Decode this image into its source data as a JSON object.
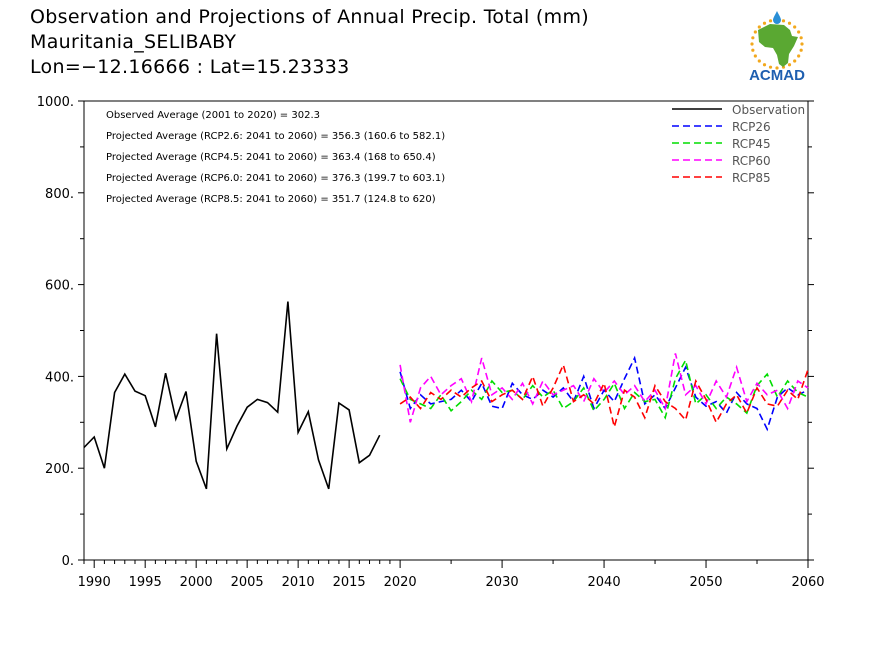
{
  "header": {
    "title_line1": "Observation and Projections of Annual Precip. Total (mm)",
    "title_line2": "Mauritania_SELIBABY",
    "title_line3": "Lon=−12.16666 : Lat=15.23333"
  },
  "logo": {
    "text": "ACMAD",
    "colors": {
      "africa": "#5aa832",
      "sun": "#f2a81d",
      "drop": "#2a8fd6",
      "text": "#1f5fb0"
    }
  },
  "chart_data": {
    "type": "line",
    "xlim": [
      1989,
      2060
    ],
    "ylim": [
      0,
      1000
    ],
    "x_ticks": [
      1990,
      1995,
      2000,
      2005,
      2010,
      2015,
      2020,
      2030,
      2040,
      2050,
      2060
    ],
    "y_ticks": [
      0,
      200,
      400,
      600,
      800,
      1000
    ],
    "y_tick_labels": [
      "0.",
      "200.",
      "400.",
      "600.",
      "800.",
      "1000."
    ],
    "annotations": [
      "Observed Average (2001 to 2020) = 302.3",
      "Projected Average (RCP2.6: 2041 to 2060) = 356.3 (160.6 to 582.1)",
      "Projected Average (RCP4.5: 2041 to 2060) = 363.4 (168 to 650.4)",
      "Projected Average (RCP6.0: 2041 to 2060) = 376.3 (199.7 to 603.1)",
      "Projected Average (RCP8.5: 2041 to 2060) = 351.7 (124.8 to 620)"
    ],
    "legend_position": "top-right",
    "series": [
      {
        "name": "Observation",
        "color": "#000000",
        "dash": "solid",
        "x": [
          1989,
          1990,
          1991,
          1992,
          1993,
          1994,
          1995,
          1996,
          1997,
          1998,
          1999,
          2000,
          2001,
          2002,
          2003,
          2004,
          2005,
          2006,
          2007,
          2008,
          2009,
          2010,
          2011,
          2012,
          2013,
          2014,
          2015,
          2016,
          2017,
          2018,
          2019,
          2020
        ],
        "values": [
          245,
          268,
          200,
          365,
          405,
          368,
          358,
          290,
          407,
          307,
          367,
          215,
          155,
          493,
          242,
          292,
          333,
          350,
          343,
          322,
          563,
          278,
          323,
          218,
          155,
          342,
          327,
          212,
          228,
          272,
          null,
          null
        ]
      },
      {
        "name": "RCP26",
        "color": "#0000ff",
        "dash": "dashed",
        "x": [
          2020,
          2021,
          2022,
          2023,
          2024,
          2025,
          2026,
          2027,
          2028,
          2029,
          2030,
          2031,
          2032,
          2033,
          2034,
          2035,
          2036,
          2037,
          2038,
          2039,
          2040,
          2041,
          2042,
          2043,
          2044,
          2045,
          2046,
          2047,
          2048,
          2049,
          2050,
          2051,
          2052,
          2053,
          2054,
          2055,
          2056,
          2057,
          2058,
          2059,
          2060
        ],
        "values": [
          410,
          330,
          360,
          340,
          345,
          350,
          370,
          345,
          385,
          335,
          330,
          385,
          360,
          350,
          370,
          355,
          375,
          345,
          400,
          330,
          370,
          345,
          395,
          440,
          340,
          360,
          330,
          375,
          420,
          355,
          335,
          345,
          320,
          365,
          340,
          330,
          285,
          355,
          375,
          360,
          370
        ]
      },
      {
        "name": "RCP45",
        "color": "#00dd00",
        "dash": "dashed",
        "x": [
          2020,
          2021,
          2022,
          2023,
          2024,
          2025,
          2026,
          2027,
          2028,
          2029,
          2030,
          2031,
          2032,
          2033,
          2034,
          2035,
          2036,
          2037,
          2038,
          2039,
          2040,
          2041,
          2042,
          2043,
          2044,
          2045,
          2046,
          2047,
          2048,
          2049,
          2050,
          2051,
          2052,
          2053,
          2054,
          2055,
          2056,
          2057,
          2058,
          2059,
          2060
        ],
        "values": [
          395,
          350,
          340,
          330,
          360,
          325,
          345,
          370,
          350,
          390,
          365,
          370,
          350,
          380,
          355,
          370,
          330,
          345,
          375,
          325,
          350,
          385,
          330,
          365,
          345,
          350,
          310,
          395,
          435,
          340,
          360,
          330,
          355,
          340,
          320,
          380,
          405,
          355,
          390,
          365,
          355
        ]
      },
      {
        "name": "RCP60",
        "color": "#ff00ff",
        "dash": "dashed",
        "x": [
          2020,
          2021,
          2022,
          2023,
          2024,
          2025,
          2026,
          2027,
          2028,
          2029,
          2030,
          2031,
          2032,
          2033,
          2034,
          2035,
          2036,
          2037,
          2038,
          2039,
          2040,
          2041,
          2042,
          2043,
          2044,
          2045,
          2046,
          2047,
          2048,
          2049,
          2050,
          2051,
          2052,
          2053,
          2054,
          2055,
          2056,
          2057,
          2058,
          2059,
          2060
        ],
        "values": [
          425,
          300,
          375,
          400,
          360,
          380,
          395,
          345,
          440,
          360,
          375,
          350,
          385,
          340,
          390,
          360,
          370,
          380,
          345,
          395,
          365,
          390,
          360,
          380,
          345,
          370,
          330,
          450,
          360,
          380,
          340,
          390,
          355,
          420,
          345,
          385,
          360,
          370,
          330,
          390,
          375
        ]
      },
      {
        "name": "RCP85",
        "color": "#ff0000",
        "dash": "dashed",
        "x": [
          2020,
          2021,
          2022,
          2023,
          2024,
          2025,
          2026,
          2027,
          2028,
          2029,
          2030,
          2031,
          2032,
          2033,
          2034,
          2035,
          2036,
          2037,
          2038,
          2039,
          2040,
          2041,
          2042,
          2043,
          2044,
          2045,
          2046,
          2047,
          2048,
          2049,
          2050,
          2051,
          2052,
          2053,
          2054,
          2055,
          2056,
          2057,
          2058,
          2059,
          2060
        ],
        "values": [
          340,
          355,
          330,
          365,
          350,
          370,
          355,
          375,
          390,
          345,
          360,
          370,
          350,
          400,
          335,
          375,
          425,
          345,
          360,
          340,
          385,
          290,
          370,
          355,
          310,
          380,
          345,
          330,
          305,
          390,
          350,
          300,
          340,
          360,
          320,
          375,
          340,
          335,
          370,
          350,
          415
        ]
      }
    ]
  }
}
